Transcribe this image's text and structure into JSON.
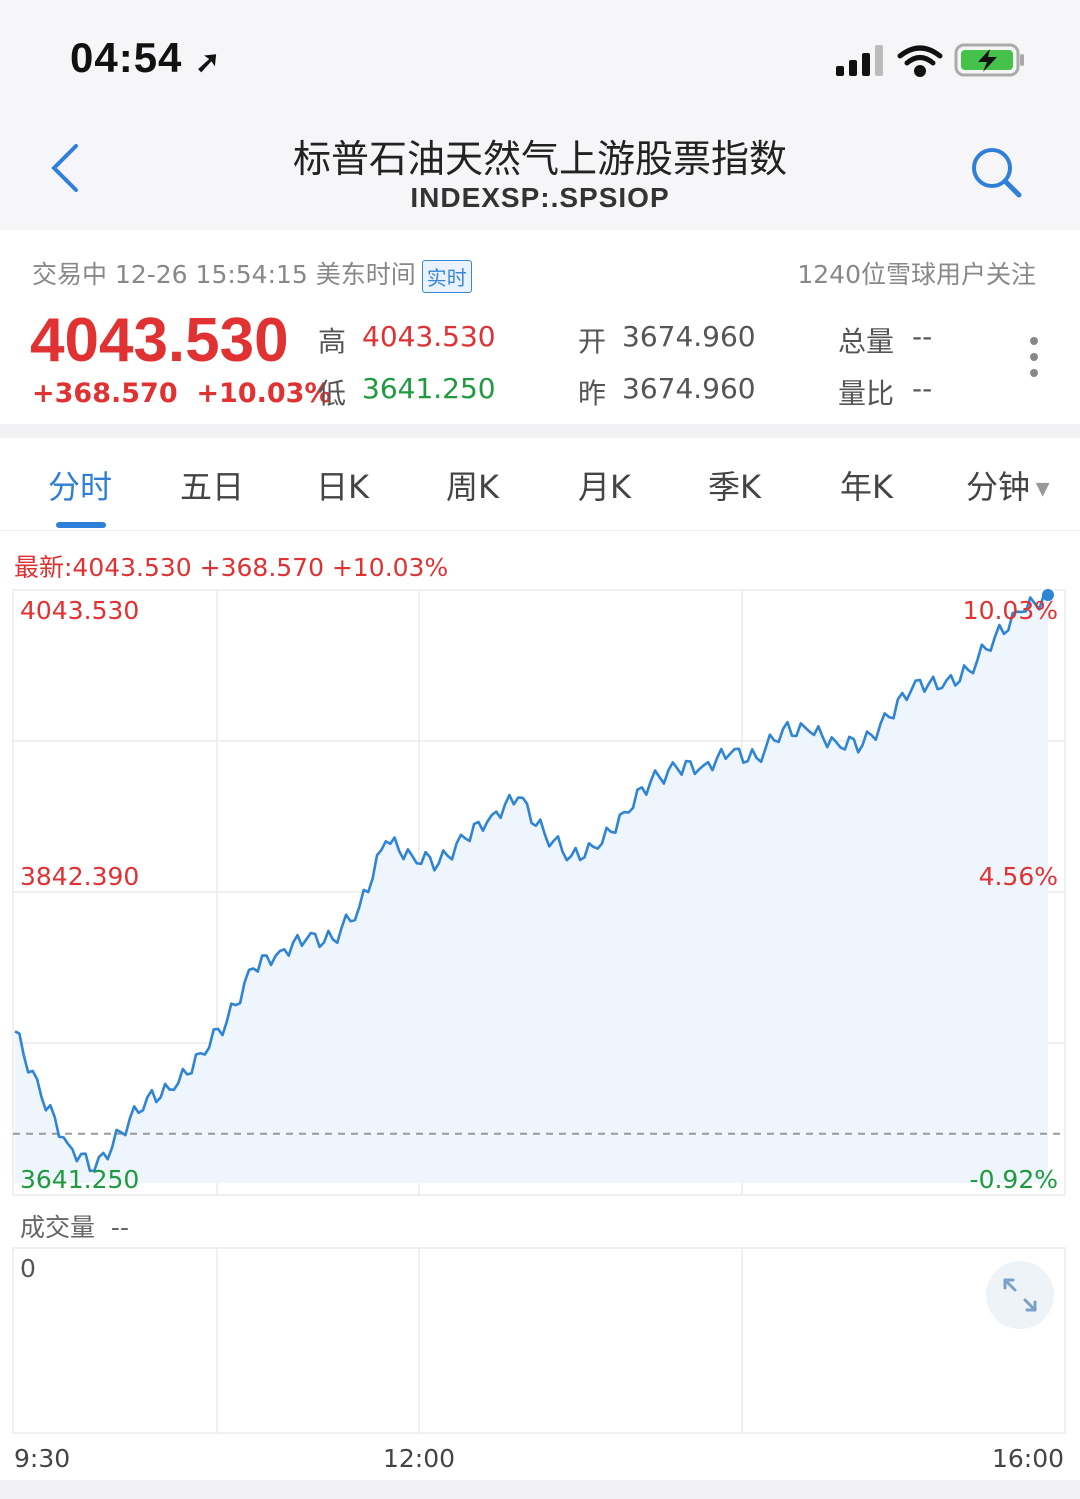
{
  "status_bar": {
    "time": "04:54"
  },
  "header": {
    "title": "标普石油天然气上游股票指数",
    "symbol": "INDEXSP:.SPSIOP"
  },
  "quote": {
    "trade_status": "交易中 12-26 15:54:15 美东时间",
    "realtime_badge": "实时",
    "followers": "1240位雪球用户关注",
    "price": "4043.530",
    "change": "+368.570",
    "change_pct": "+10.03%",
    "high_label": "高",
    "high": "4043.530",
    "low_label": "低",
    "low": "3641.250",
    "open_label": "开",
    "open": "3674.960",
    "prev_label": "昨",
    "prev": "3674.960",
    "volume_label": "总量",
    "volume": "--",
    "ratio_label": "量比",
    "ratio": "--"
  },
  "tabs": [
    {
      "label": "分时",
      "active": true
    },
    {
      "label": "五日"
    },
    {
      "label": "日K"
    },
    {
      "label": "周K"
    },
    {
      "label": "月K"
    },
    {
      "label": "季K"
    },
    {
      "label": "年K"
    },
    {
      "label": "分钟"
    }
  ],
  "chart": {
    "latest_label": "最新:4043.530  +368.570  +10.03%",
    "volume_label": "成交量",
    "volume_value": "--",
    "volume_zero": "0"
  },
  "colors": {
    "accent": "#2f7fd8",
    "up": "#e03232",
    "down": "#1f9a3f",
    "line": "#2f84d3",
    "fill": "#eef5fc"
  },
  "chart_data": {
    "type": "line",
    "x_ticks": [
      "9:30",
      "12:00",
      "16:00"
    ],
    "y_ticks_left": [
      "4043.530",
      "3842.390",
      "3641.250"
    ],
    "y_ticks_right": [
      "10.03%",
      "4.56%",
      "-0.92%"
    ],
    "ylim": [
      3641.25,
      4043.53
    ],
    "prev_close": 3674.96,
    "x": [
      "9:30",
      "9:40",
      "9:50",
      "10:00",
      "10:10",
      "10:20",
      "10:30",
      "10:40",
      "10:50",
      "11:00",
      "11:10",
      "11:20",
      "11:30",
      "11:40",
      "11:50",
      "12:00",
      "12:10",
      "12:20",
      "12:30",
      "12:40",
      "12:50",
      "13:00",
      "13:10",
      "13:20",
      "13:30",
      "13:40",
      "13:50",
      "14:00",
      "14:10",
      "14:20",
      "14:30",
      "14:40",
      "14:50",
      "15:00",
      "15:10",
      "15:20",
      "15:30",
      "15:40",
      "15:50",
      "16:00"
    ],
    "values": [
      3745,
      3700,
      3668,
      3650,
      3676,
      3700,
      3705,
      3730,
      3752,
      3788,
      3800,
      3808,
      3808,
      3830,
      3875,
      3865,
      3860,
      3877,
      3893,
      3905,
      3880,
      3865,
      3870,
      3895,
      3916,
      3925,
      3927,
      3935,
      3932,
      3952,
      3950,
      3943,
      3941,
      3960,
      3985,
      3980,
      3992,
      4015,
      4032,
      4043.53
    ]
  }
}
